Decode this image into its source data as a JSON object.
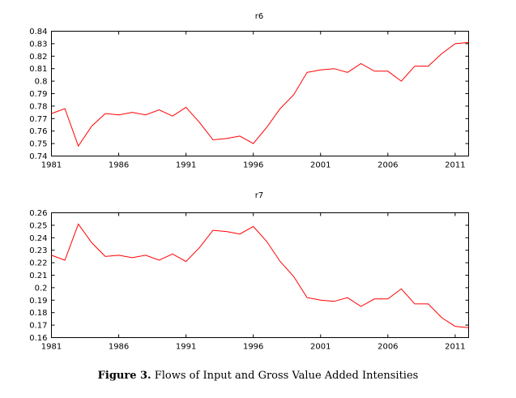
{
  "colors": {
    "line": "#ff0000",
    "axis": "#000000",
    "background": "#ffffff"
  },
  "caption": {
    "label": "Figure 3.",
    "text": "Flows of Input and Gross Value Added Intensities"
  },
  "chart_data": [
    {
      "type": "line",
      "title": "r6",
      "xlabel": "",
      "ylabel": "",
      "xlim": [
        1981,
        2012
      ],
      "ylim": [
        0.74,
        0.84
      ],
      "xticks": [
        1981,
        1986,
        1991,
        1996,
        2001,
        2006,
        2011
      ],
      "yticks": [
        "0.74",
        "0.75",
        "0.76",
        "0.77",
        "0.78",
        "0.79",
        "0.8",
        "0.81",
        "0.82",
        "0.83",
        "0.84"
      ],
      "grid": false,
      "x": [
        1981,
        1982,
        1983,
        1984,
        1985,
        1986,
        1987,
        1988,
        1989,
        1990,
        1991,
        1992,
        1993,
        1994,
        1995,
        1996,
        1997,
        1998,
        1999,
        2000,
        2001,
        2002,
        2003,
        2004,
        2005,
        2006,
        2007,
        2008,
        2009,
        2010,
        2011,
        2012
      ],
      "series": [
        {
          "values": [
            0.774,
            0.778,
            0.748,
            0.764,
            0.774,
            0.773,
            0.775,
            0.773,
            0.777,
            0.772,
            0.779,
            0.767,
            0.753,
            0.754,
            0.756,
            0.75,
            0.763,
            0.778,
            0.789,
            0.807,
            0.809,
            0.81,
            0.807,
            0.814,
            0.808,
            0.808,
            0.8,
            0.812,
            0.812,
            0.822,
            0.83,
            0.831
          ]
        }
      ]
    },
    {
      "type": "line",
      "title": "r7",
      "xlabel": "",
      "ylabel": "",
      "xlim": [
        1981,
        2012
      ],
      "ylim": [
        0.16,
        0.26
      ],
      "xticks": [
        1981,
        1986,
        1991,
        1996,
        2001,
        2006,
        2011
      ],
      "yticks": [
        "0.16",
        "0.17",
        "0.18",
        "0.19",
        "0.2",
        "0.21",
        "0.22",
        "0.23",
        "0.24",
        "0.25",
        "0.26"
      ],
      "grid": false,
      "x": [
        1981,
        1982,
        1983,
        1984,
        1985,
        1986,
        1987,
        1988,
        1989,
        1990,
        1991,
        1992,
        1993,
        1994,
        1995,
        1996,
        1997,
        1998,
        1999,
        2000,
        2001,
        2002,
        2003,
        2004,
        2005,
        2006,
        2007,
        2008,
        2009,
        2010,
        2011,
        2012
      ],
      "series": [
        {
          "values": [
            0.226,
            0.222,
            0.251,
            0.236,
            0.225,
            0.226,
            0.224,
            0.226,
            0.222,
            0.227,
            0.221,
            0.232,
            0.246,
            0.245,
            0.243,
            0.249,
            0.237,
            0.221,
            0.209,
            0.192,
            0.19,
            0.189,
            0.192,
            0.185,
            0.191,
            0.191,
            0.199,
            0.187,
            0.187,
            0.176,
            0.169,
            0.168
          ]
        }
      ]
    }
  ]
}
